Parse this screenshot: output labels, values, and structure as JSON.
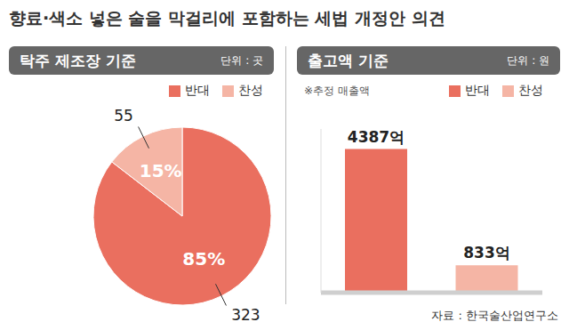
{
  "title": "향료·색소 넣은 술을 막걸리에 포함하는 세법 개정안 의견",
  "source": "자료 : 한국술산업연구소",
  "chart_data": [
    {
      "type": "pie",
      "title": "탁주 제조장 기준",
      "subtitle": "단위 : 곳",
      "categories": [
        "반대",
        "찬성"
      ],
      "values": [
        323,
        55
      ],
      "colors": [
        "#ea6f5f",
        "#f5b5a5"
      ],
      "percents": [
        85,
        15
      ],
      "percent_labels": [
        "85%",
        "15%"
      ],
      "data_labels": true,
      "legend": "top right"
    },
    {
      "type": "bar",
      "title": "출고액 기준",
      "subtitle": "단위 : 원",
      "annotations": [
        "※추정 매출액"
      ],
      "categories": [
        "반대",
        "찬성"
      ],
      "values": [
        4387,
        833
      ],
      "value_labels": [
        "4387억",
        "833억"
      ],
      "colors": [
        "#ea6f5f",
        "#f5b5a5"
      ],
      "ylim": [
        0,
        5000
      ],
      "data_labels": true,
      "tick_labels": false,
      "legend": "top right"
    }
  ]
}
